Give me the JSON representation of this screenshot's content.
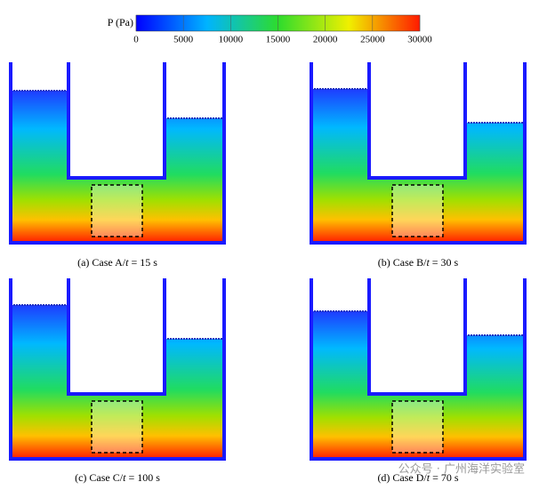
{
  "colorbar": {
    "label": "P (Pa)",
    "ticks": [
      0,
      5000,
      10000,
      15000,
      20000,
      25000,
      30000
    ]
  },
  "panels": [
    {
      "caption_prefix": "(a) Case A/",
      "caption_var": "t",
      "caption_suffix": " = 15 s"
    },
    {
      "caption_prefix": "(b) Case B/",
      "caption_var": "t",
      "caption_suffix": " = 30 s"
    },
    {
      "caption_prefix": "(c) Case C/",
      "caption_var": "t",
      "caption_suffix": " = 100 s"
    },
    {
      "caption_prefix": "(d) Case D/",
      "caption_var": "t",
      "caption_suffix": " = 70 s"
    }
  ],
  "watermark": "公众号 · 广州海洋实验室"
}
